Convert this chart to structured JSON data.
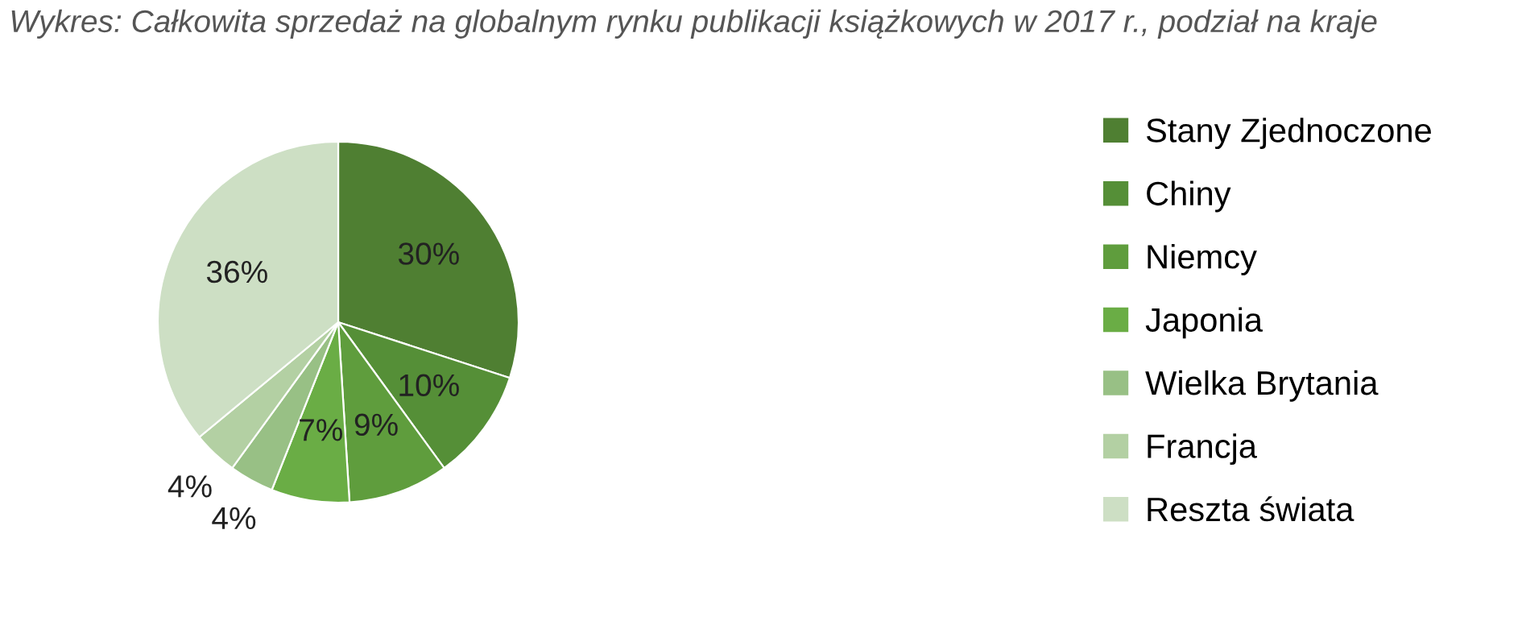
{
  "chart_data": {
    "type": "pie",
    "title": "Wykres: Całkowita sprzedaż na globalnym rynku publikacji książkowych w 2017 r., podział na kraje",
    "categories": [
      "Stany Zjednoczone",
      "Chiny",
      "Niemcy",
      "Japonia",
      "Wielka Brytania",
      "Francja",
      "Reszta świata"
    ],
    "values": [
      30,
      10,
      9,
      7,
      4,
      4,
      36
    ],
    "value_labels": [
      "30%",
      "10%",
      "9%",
      "7%",
      "4%",
      "4%",
      "36%"
    ],
    "colors": [
      "#4f7f32",
      "#558f37",
      "#5f9d3d",
      "#6aad45",
      "#98c085",
      "#b3d0a3",
      "#cddfc4"
    ],
    "legend": "right"
  }
}
